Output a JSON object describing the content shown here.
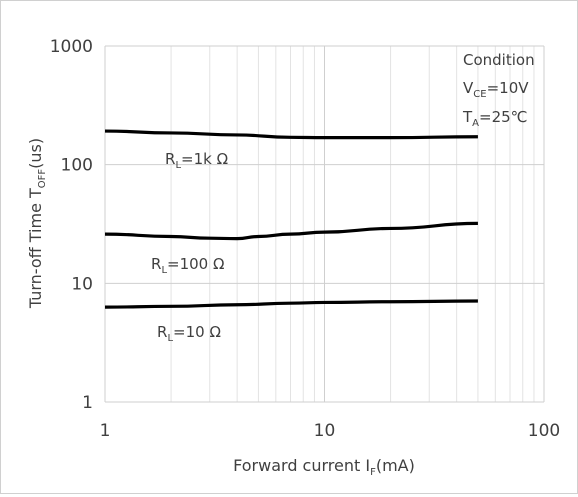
{
  "chart_data": {
    "type": "line",
    "xscale": "log",
    "yscale": "log",
    "xlim": [
      1,
      100
    ],
    "ylim": [
      1,
      1000
    ],
    "xticks": [
      "1",
      "10",
      "100"
    ],
    "yticks": [
      "1",
      "10",
      "100",
      "1000"
    ],
    "xlabel": {
      "main": "Forward current I",
      "sub": "F",
      "tail": "(mA)"
    },
    "ylabel": {
      "main": "Turn-off Time T",
      "sub": "OFF",
      "tail": "(us)"
    },
    "condition": {
      "title": "Condition",
      "vce": {
        "main": "V",
        "sub": "CE",
        "tail": "=10V"
      },
      "ta": {
        "main": "T",
        "sub": "A",
        "tail": "=25℃"
      }
    },
    "grid": true,
    "line_color": "#000000",
    "series": [
      {
        "label": {
          "main": "R",
          "sub": "L",
          "tail": "=1k Ω"
        },
        "x": [
          1,
          2,
          4,
          7,
          10,
          20,
          50
        ],
        "y": [
          192,
          185,
          178,
          170,
          169,
          169,
          172
        ]
      },
      {
        "label": {
          "main": "R",
          "sub": "L",
          "tail": "=100 Ω"
        },
        "x": [
          1,
          2,
          3,
          4,
          5,
          7,
          10,
          20,
          50
        ],
        "y": [
          26,
          24.8,
          24,
          23.8,
          24.8,
          26,
          27,
          29,
          32
        ]
      },
      {
        "label": {
          "main": "R",
          "sub": "L",
          "tail": "=10 Ω"
        },
        "x": [
          1,
          2,
          4,
          7,
          10,
          20,
          50
        ],
        "y": [
          6.3,
          6.4,
          6.6,
          6.8,
          6.9,
          7,
          7.1
        ]
      }
    ]
  }
}
